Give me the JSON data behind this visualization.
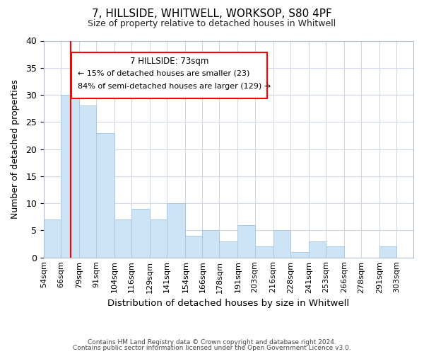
{
  "title": "7, HILLSIDE, WHITWELL, WORKSOP, S80 4PF",
  "subtitle": "Size of property relative to detached houses in Whitwell",
  "xlabel": "Distribution of detached houses by size in Whitwell",
  "ylabel": "Number of detached properties",
  "bar_color": "#cce4f5",
  "bar_edge_color": "#a8c8e8",
  "categories": [
    "54sqm",
    "66sqm",
    "79sqm",
    "91sqm",
    "104sqm",
    "116sqm",
    "129sqm",
    "141sqm",
    "154sqm",
    "166sqm",
    "178sqm",
    "191sqm",
    "203sqm",
    "216sqm",
    "228sqm",
    "241sqm",
    "253sqm",
    "266sqm",
    "278sqm",
    "291sqm",
    "303sqm"
  ],
  "values": [
    7,
    30,
    28,
    23,
    7,
    9,
    7,
    10,
    4,
    5,
    3,
    6,
    2,
    5,
    1,
    3,
    2,
    0,
    0,
    2,
    0
  ],
  "marker_label": "7 HILLSIDE: 73sqm",
  "annotation_line1": "← 15% of detached houses are smaller (23)",
  "annotation_line2": "84% of semi-detached houses are larger (129) →",
  "ylim": [
    0,
    40
  ],
  "yticks": [
    0,
    5,
    10,
    15,
    20,
    25,
    30,
    35,
    40
  ],
  "bin_edges": [
    54,
    66,
    79,
    91,
    104,
    116,
    129,
    141,
    154,
    166,
    178,
    191,
    203,
    216,
    228,
    241,
    253,
    266,
    278,
    291,
    303,
    315
  ],
  "footer1": "Contains HM Land Registry data © Crown copyright and database right 2024.",
  "footer2": "Contains public sector information licensed under the Open Government Licence v3.0.",
  "red_line_x": 73,
  "grid_color": "#d0d8e8",
  "title_fontsize": 11,
  "subtitle_fontsize": 9
}
